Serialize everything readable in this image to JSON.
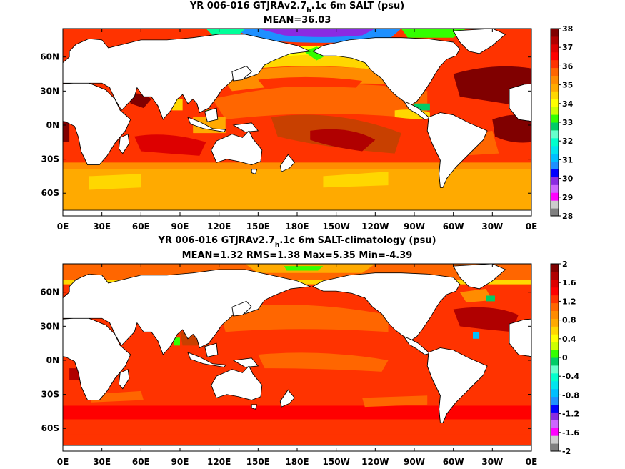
{
  "chart_data": [
    {
      "type": "heatmap",
      "title_main": "YR 006-016 GTJRAv2.7",
      "title_sub": "h",
      "title_rest": ".1c 6m SALT (psu)",
      "subtitle": "MEAN=36.03",
      "x_ticks": [
        "0E",
        "30E",
        "60E",
        "90E",
        "120E",
        "150E",
        "180E",
        "150W",
        "120W",
        "90W",
        "60W",
        "30W",
        "0E"
      ],
      "y_ticks": [
        "60N",
        "30N",
        "0N",
        "30S",
        "60S"
      ],
      "xlim": [
        0,
        360
      ],
      "ylim": [
        -80,
        85
      ],
      "colorbar": {
        "ticks": [
          "38",
          "37",
          "36",
          "35",
          "34",
          "33",
          "32",
          "31",
          "30",
          "29",
          "28"
        ],
        "range": [
          28,
          38
        ],
        "colors": [
          "#808080",
          "#cccccc",
          "#ff00ff",
          "#cc66ff",
          "#8a2be2",
          "#0000ff",
          "#1e90ff",
          "#00bfff",
          "#00e5ee",
          "#00ffcc",
          "#66ffcc",
          "#00cc66",
          "#33ff00",
          "#ccff00",
          "#ffff00",
          "#ffd700",
          "#ffaa00",
          "#ff8c00",
          "#ff6600",
          "#ff3300",
          "#ff0000",
          "#dd0000",
          "#b00000",
          "#800000"
        ]
      }
    },
    {
      "type": "heatmap",
      "title_main": "YR 006-016 GTJRAv2.7",
      "title_sub": "h",
      "title_rest": ".1c 6m SALT-climatology (psu)",
      "subtitle": "MEAN=1.32   RMS=1.38   Max=5.35   Min=-4.39",
      "x_ticks": [
        "0E",
        "30E",
        "60E",
        "90E",
        "120E",
        "150E",
        "180E",
        "150W",
        "120W",
        "90W",
        "60W",
        "30W",
        "0E"
      ],
      "y_ticks": [
        "60N",
        "30N",
        "0N",
        "30S",
        "60S"
      ],
      "xlim": [
        0,
        360
      ],
      "ylim": [
        -80,
        85
      ],
      "colorbar": {
        "ticks": [
          "2",
          "1.6",
          "1.2",
          "0.8",
          "0.4",
          "0",
          "-0.4",
          "-0.8",
          "-1.2",
          "-1.6",
          "-2"
        ],
        "range": [
          -2,
          2
        ],
        "colors": [
          "#808080",
          "#cccccc",
          "#ff00ff",
          "#cc66ff",
          "#8a2be2",
          "#0000ff",
          "#1e90ff",
          "#00bfff",
          "#00e5ee",
          "#00ffcc",
          "#66ffcc",
          "#00cc66",
          "#33ff00",
          "#ccff00",
          "#ffff00",
          "#ffd700",
          "#ffaa00",
          "#ff8c00",
          "#ff6600",
          "#ff3300",
          "#ff0000",
          "#dd0000",
          "#b00000",
          "#800000"
        ]
      }
    }
  ]
}
